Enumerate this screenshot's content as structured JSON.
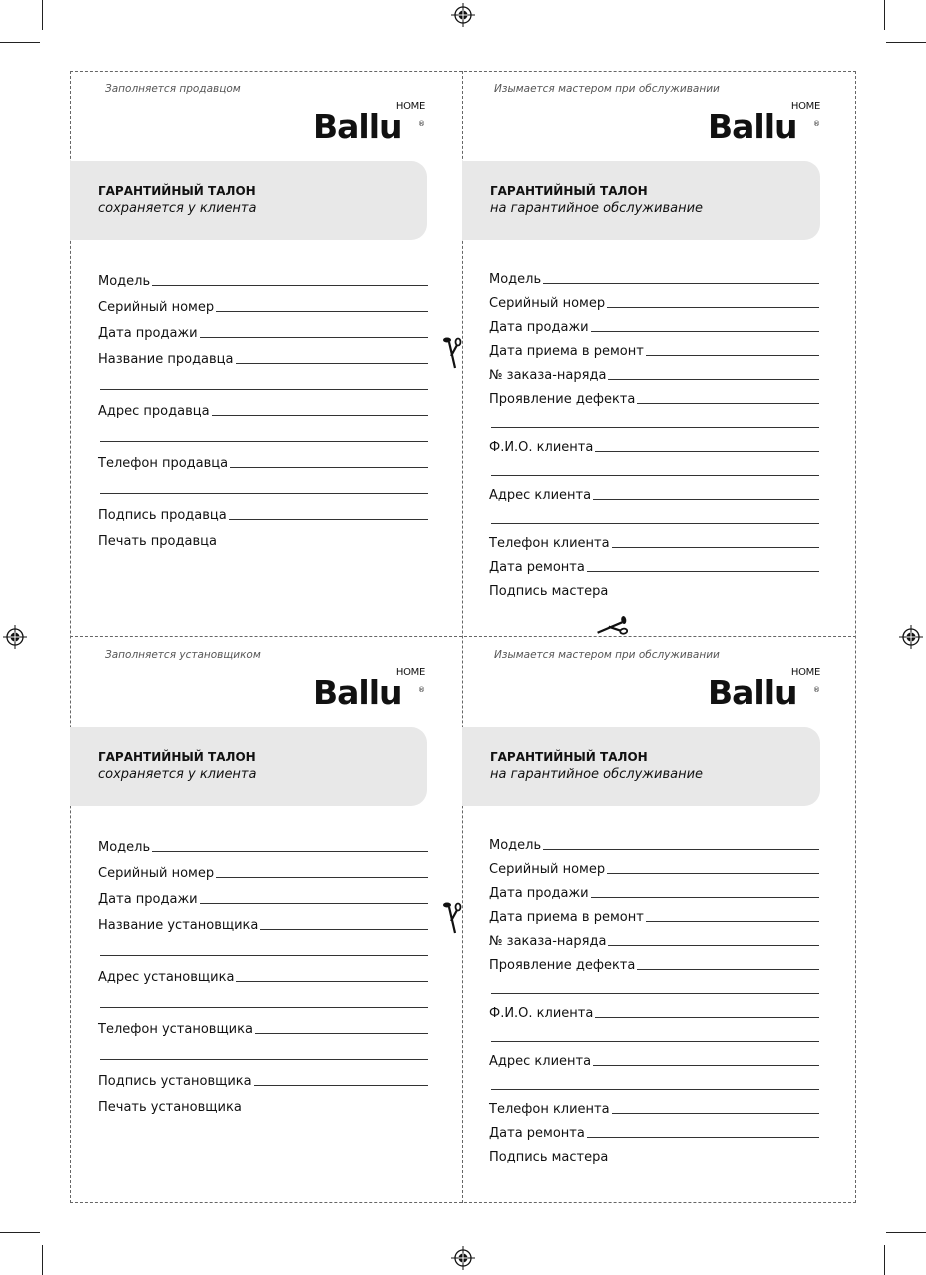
{
  "brand": {
    "logo_word": "Ballu",
    "logo_sub": "HOME",
    "logo_reg": "®"
  },
  "coupons": [
    {
      "note": "Заполняется продавцом",
      "title": "ГАРАНТИЙНЫЙ ТАЛОН",
      "subtitle": "сохраняется у клиента",
      "rows": [
        {
          "label": "Модель",
          "line": true
        },
        {
          "label": "Серийный номер",
          "line": true
        },
        {
          "label": "Дата продажи",
          "line": true
        },
        {
          "label": "Название продавца",
          "line": true
        },
        {
          "label": "",
          "line": true
        },
        {
          "label": "Адрес продавца",
          "line": true
        },
        {
          "label": "",
          "line": true
        },
        {
          "label": "Телефон продавца",
          "line": true
        },
        {
          "label": "",
          "line": true
        },
        {
          "label": "Подпись продавца",
          "line": true
        },
        {
          "label": "Печать продавца",
          "line": false
        }
      ]
    },
    {
      "note": "Изымается мастером при обслуживании",
      "title": "ГАРАНТИЙНЫЙ ТАЛОН",
      "subtitle": "на гарантийное обслуживание",
      "rows": [
        {
          "label": "Модель",
          "line": true
        },
        {
          "label": "Серийный номер",
          "line": true
        },
        {
          "label": "Дата продажи",
          "line": true
        },
        {
          "label": "Дата приема в ремонт",
          "line": true
        },
        {
          "label": "№ заказа-наряда",
          "line": true
        },
        {
          "label": "Проявление дефекта",
          "line": true
        },
        {
          "label": "",
          "line": true
        },
        {
          "label": "Ф.И.О. клиента",
          "line": true
        },
        {
          "label": "",
          "line": true
        },
        {
          "label": "Адрес клиента",
          "line": true
        },
        {
          "label": "",
          "line": true
        },
        {
          "label": "Телефон клиента",
          "line": true
        },
        {
          "label": "Дата ремонта",
          "line": true
        },
        {
          "label": "Подпись мастера",
          "line": false
        }
      ]
    },
    {
      "note": "Заполняется установщиком",
      "title": "ГАРАНТИЙНЫЙ ТАЛОН",
      "subtitle": "сохраняется у клиента",
      "rows": [
        {
          "label": "Модель",
          "line": true
        },
        {
          "label": "Серийный номер",
          "line": true
        },
        {
          "label": "Дата продажи",
          "line": true
        },
        {
          "label": "Название установщика",
          "line": true
        },
        {
          "label": "",
          "line": true
        },
        {
          "label": "Адрес установщика",
          "line": true
        },
        {
          "label": "",
          "line": true
        },
        {
          "label": "Телефон установщика",
          "line": true
        },
        {
          "label": "",
          "line": true
        },
        {
          "label": "Подпись установщика",
          "line": true
        },
        {
          "label": "Печать установщика",
          "line": false
        }
      ]
    },
    {
      "note": "Изымается мастером при обслуживании",
      "title": "ГАРАНТИЙНЫЙ ТАЛОН",
      "subtitle": "на гарантийное обслуживание",
      "rows": [
        {
          "label": "Модель",
          "line": true
        },
        {
          "label": "Серийный номер",
          "line": true
        },
        {
          "label": "Дата продажи",
          "line": true
        },
        {
          "label": "Дата приема в ремонт",
          "line": true
        },
        {
          "label": "№ заказа-наряда",
          "line": true
        },
        {
          "label": "Проявление дефекта",
          "line": true
        },
        {
          "label": "",
          "line": true
        },
        {
          "label": "Ф.И.О. клиента",
          "line": true
        },
        {
          "label": "",
          "line": true
        },
        {
          "label": "Адрес клиента",
          "line": true
        },
        {
          "label": "",
          "line": true
        },
        {
          "label": "Телефон клиента",
          "line": true
        },
        {
          "label": "Дата ремонта",
          "line": true
        },
        {
          "label": "Подпись мастера",
          "line": false
        }
      ]
    }
  ]
}
